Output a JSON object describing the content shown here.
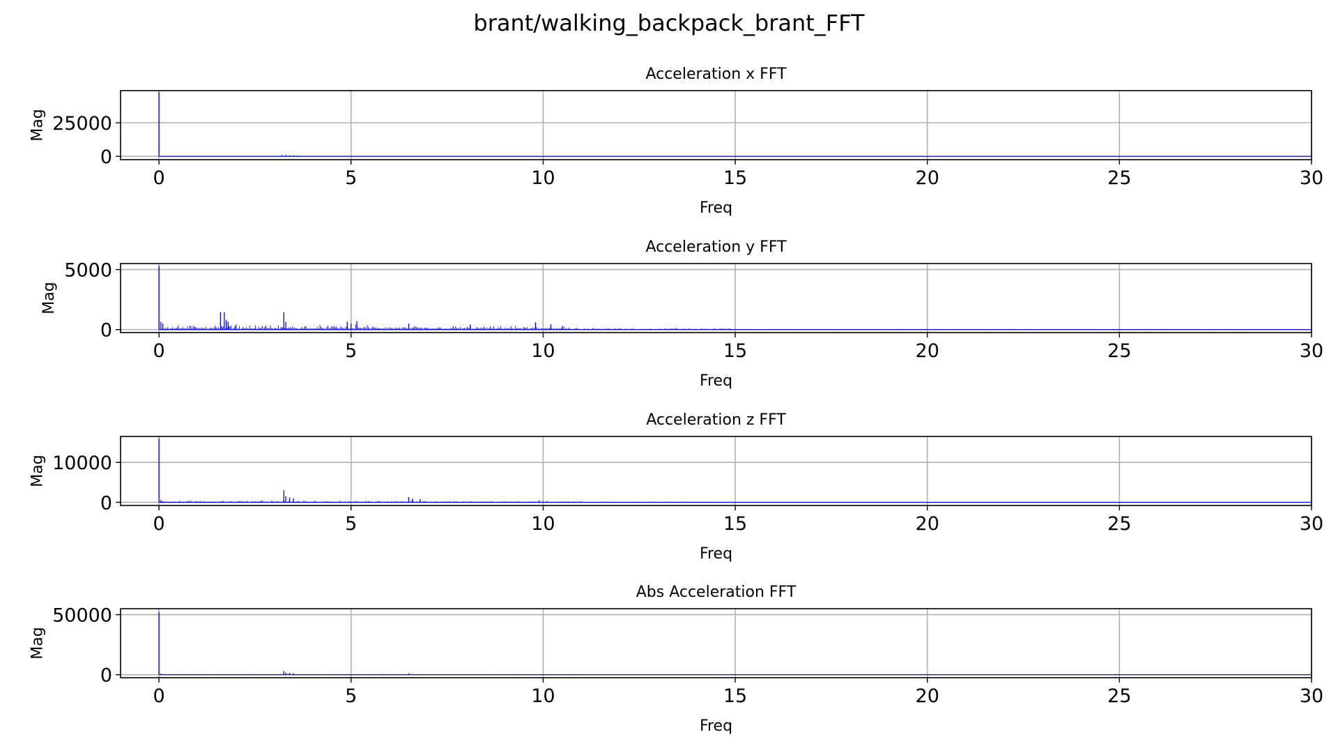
{
  "figure": {
    "suptitle": "brant/walking_backpack_brant_FFT"
  },
  "chart_data": [
    {
      "type": "line",
      "title": "Acceleration x FFT",
      "xlabel": "Freq",
      "ylabel": "Mag",
      "xlim": [
        -1,
        30
      ],
      "ylim": [
        -2500,
        49000
      ],
      "xticks": [
        0,
        5,
        10,
        15,
        20,
        25,
        30
      ],
      "yticks": [
        0,
        25000
      ],
      "grid": true,
      "color": "#0000ff",
      "peaks": [
        {
          "x": 0.0,
          "y": 48000
        },
        {
          "x": 3.2,
          "y": 900
        },
        {
          "x": 3.3,
          "y": 1100
        },
        {
          "x": 3.4,
          "y": 800
        },
        {
          "x": 3.5,
          "y": 700
        },
        {
          "x": 3.6,
          "y": 500
        }
      ],
      "floor": [
        {
          "x_range": [
            0.05,
            4
          ],
          "y_max": 300
        },
        {
          "x_range": [
            4,
            10
          ],
          "y_max": 150
        },
        {
          "x_range": [
            10,
            30
          ],
          "y_max": 60
        }
      ]
    },
    {
      "type": "line",
      "title": "Acceleration y FFT",
      "xlabel": "Freq",
      "ylabel": "Mag",
      "xlim": [
        -1,
        30
      ],
      "ylim": [
        -250,
        5500
      ],
      "xticks": [
        0,
        5,
        10,
        15,
        20,
        25,
        30
      ],
      "yticks": [
        0,
        5000
      ],
      "grid": true,
      "color": "#0000ff",
      "peaks": [
        {
          "x": 0.0,
          "y": 5300
        },
        {
          "x": 0.05,
          "y": 650
        },
        {
          "x": 0.1,
          "y": 500
        },
        {
          "x": 1.6,
          "y": 1450
        },
        {
          "x": 1.7,
          "y": 1450
        },
        {
          "x": 1.75,
          "y": 800
        },
        {
          "x": 1.8,
          "y": 650
        },
        {
          "x": 2.0,
          "y": 400
        },
        {
          "x": 3.25,
          "y": 1450
        },
        {
          "x": 3.3,
          "y": 650
        },
        {
          "x": 4.9,
          "y": 650
        },
        {
          "x": 5.15,
          "y": 700
        },
        {
          "x": 5.0,
          "y": 500
        },
        {
          "x": 6.5,
          "y": 500
        },
        {
          "x": 8.1,
          "y": 420
        },
        {
          "x": 9.8,
          "y": 600
        },
        {
          "x": 10.2,
          "y": 430
        },
        {
          "x": 10.5,
          "y": 300
        }
      ],
      "floor": [
        {
          "x_range": [
            0.05,
            5.5
          ],
          "y_max": 420
        },
        {
          "x_range": [
            5.5,
            10.6
          ],
          "y_max": 330
        },
        {
          "x_range": [
            10.6,
            15
          ],
          "y_max": 150
        },
        {
          "x_range": [
            15,
            30
          ],
          "y_max": 50
        }
      ]
    },
    {
      "type": "line",
      "title": "Acceleration z FFT",
      "xlabel": "Freq",
      "ylabel": "Mag",
      "xlim": [
        -1,
        30
      ],
      "ylim": [
        -800,
        16500
      ],
      "xticks": [
        0,
        5,
        10,
        15,
        20,
        25,
        30
      ],
      "yticks": [
        0,
        10000
      ],
      "grid": true,
      "color": "#0000ff",
      "peaks": [
        {
          "x": 0.0,
          "y": 16000
        },
        {
          "x": 0.05,
          "y": 600
        },
        {
          "x": 3.25,
          "y": 3000
        },
        {
          "x": 3.3,
          "y": 1500
        },
        {
          "x": 3.4,
          "y": 1200
        },
        {
          "x": 3.5,
          "y": 1000
        },
        {
          "x": 6.5,
          "y": 1300
        },
        {
          "x": 6.6,
          "y": 900
        },
        {
          "x": 6.8,
          "y": 800
        },
        {
          "x": 9.9,
          "y": 500
        }
      ],
      "floor": [
        {
          "x_range": [
            0.05,
            7
          ],
          "y_max": 500
        },
        {
          "x_range": [
            7,
            11
          ],
          "y_max": 350
        },
        {
          "x_range": [
            11,
            15
          ],
          "y_max": 150
        },
        {
          "x_range": [
            15,
            30
          ],
          "y_max": 60
        }
      ]
    },
    {
      "type": "line",
      "title": "Abs Acceleration FFT",
      "xlabel": "Freq",
      "ylabel": "Mag",
      "xlim": [
        -1,
        30
      ],
      "ylim": [
        -2500,
        55000
      ],
      "xticks": [
        0,
        5,
        10,
        15,
        20,
        25,
        30
      ],
      "yticks": [
        0,
        50000
      ],
      "grid": true,
      "color": "#0000ff",
      "peaks": [
        {
          "x": 0.0,
          "y": 52000
        },
        {
          "x": 0.05,
          "y": 900
        },
        {
          "x": 3.25,
          "y": 3000
        },
        {
          "x": 3.3,
          "y": 1800
        },
        {
          "x": 3.4,
          "y": 1500
        },
        {
          "x": 3.5,
          "y": 1200
        },
        {
          "x": 6.5,
          "y": 1100
        }
      ],
      "floor": [
        {
          "x_range": [
            0.05,
            7
          ],
          "y_max": 600
        },
        {
          "x_range": [
            7,
            11
          ],
          "y_max": 400
        },
        {
          "x_range": [
            11,
            15
          ],
          "y_max": 200
        },
        {
          "x_range": [
            15,
            30
          ],
          "y_max": 80
        }
      ]
    }
  ]
}
